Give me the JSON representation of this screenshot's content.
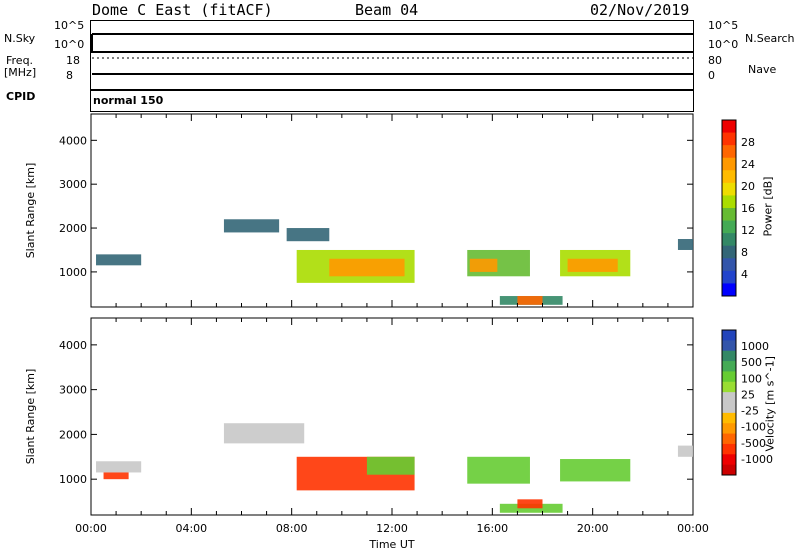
{
  "header": {
    "station": "Dome C East (fitACF)",
    "beam": "Beam 04",
    "date": "02/Nov/2019"
  },
  "top_panels": {
    "nsky_label": "N.Sky",
    "nsky_ticks": [
      "10^5",
      "10^0"
    ],
    "nsearch_label": "N.Search",
    "nsearch_ticks": [
      "10^5",
      "10^0"
    ],
    "freq_label_1": "Freq.",
    "freq_label_2": "[MHz]",
    "freq_ticks": [
      "18",
      "8"
    ],
    "nave_label": "Nave",
    "nave_ticks": [
      "80",
      "0"
    ],
    "cpid_label": "CPID",
    "cpid_value": "normal 150"
  },
  "colorbars": {
    "power": {
      "label": "Power [dB]",
      "ticks": [
        "28",
        "24",
        "20",
        "16",
        "12",
        "8",
        "4"
      ],
      "colors": [
        "#ee0000",
        "#ff3300",
        "#ff6600",
        "#ff9900",
        "#ffbb00",
        "#eedd00",
        "#aadd00",
        "#66bb33",
        "#44aa55",
        "#338866",
        "#336677",
        "#3355aa",
        "#2244cc",
        "#0000ff"
      ]
    },
    "velocity": {
      "label": "Velocity [m s^-1]",
      "ticks": [
        "1000",
        "500",
        "100",
        "25",
        "-25",
        "-100",
        "-500",
        "-1000"
      ],
      "colors": [
        "#2244bb",
        "#3355aa",
        "#338866",
        "#44aa55",
        "#66cc33",
        "#99dd33",
        "#c8c8c8",
        "#c8c8c8",
        "#ffbb00",
        "#ff9900",
        "#ff6600",
        "#ff3300",
        "#ee0000",
        "#cc0000"
      ]
    }
  },
  "chart_data": [
    {
      "type": "heatmap",
      "panel": "power",
      "ylabel": "Slant Range [km]",
      "xlabel": "",
      "ylim": [
        200,
        4600
      ],
      "xlim": [
        0,
        24
      ],
      "yticks": [
        "4000",
        "3000",
        "2000",
        "1000"
      ],
      "ytick_values": [
        4000,
        3000,
        2000,
        1000
      ],
      "patches": [
        {
          "t0": 0.2,
          "t1": 2.0,
          "r0": 1150,
          "r1": 1400,
          "value": 6
        },
        {
          "t0": 5.3,
          "t1": 7.5,
          "r0": 1900,
          "r1": 2200,
          "value": 8
        },
        {
          "t0": 7.8,
          "t1": 9.5,
          "r0": 1700,
          "r1": 2000,
          "value": 8
        },
        {
          "t0": 8.2,
          "t1": 12.9,
          "r0": 750,
          "r1": 1500,
          "value": 16
        },
        {
          "t0": 9.5,
          "t1": 12.5,
          "r0": 900,
          "r1": 1300,
          "value": 22
        },
        {
          "t0": 15.0,
          "t1": 17.5,
          "r0": 900,
          "r1": 1500,
          "value": 14
        },
        {
          "t0": 15.1,
          "t1": 16.2,
          "r0": 1000,
          "r1": 1300,
          "value": 24
        },
        {
          "t0": 16.3,
          "t1": 18.8,
          "r0": 250,
          "r1": 450,
          "value": 10
        },
        {
          "t0": 17.0,
          "t1": 18.0,
          "r0": 250,
          "r1": 450,
          "value": 26
        },
        {
          "t0": 18.7,
          "t1": 21.5,
          "r0": 900,
          "r1": 1500,
          "value": 16
        },
        {
          "t0": 19.0,
          "t1": 21.0,
          "r0": 1000,
          "r1": 1300,
          "value": 24
        },
        {
          "t0": 23.4,
          "t1": 24.0,
          "r0": 1500,
          "r1": 1750,
          "value": 8
        }
      ]
    },
    {
      "type": "heatmap",
      "panel": "velocity",
      "ylabel": "Slant Range [km]",
      "xlabel": "Time UT",
      "ylim": [
        200,
        4600
      ],
      "xlim": [
        0,
        24
      ],
      "yticks": [
        "4000",
        "3000",
        "2000",
        "1000"
      ],
      "ytick_values": [
        4000,
        3000,
        2000,
        1000
      ],
      "xticks": [
        "00:00",
        "04:00",
        "08:00",
        "12:00",
        "16:00",
        "20:00",
        "00:00"
      ],
      "xtick_values": [
        0,
        4,
        8,
        12,
        16,
        20,
        24
      ],
      "patches": [
        {
          "t0": 0.2,
          "t1": 2.0,
          "r0": 1150,
          "r1": 1400,
          "value": 0
        },
        {
          "t0": 0.5,
          "t1": 1.5,
          "r0": 1000,
          "r1": 1150,
          "value": -150
        },
        {
          "t0": 5.3,
          "t1": 8.5,
          "r0": 1800,
          "r1": 2250,
          "value": 0
        },
        {
          "t0": 8.2,
          "t1": 12.9,
          "r0": 750,
          "r1": 1500,
          "value": -200
        },
        {
          "t0": 11.0,
          "t1": 12.9,
          "r0": 1100,
          "r1": 1500,
          "value": 150
        },
        {
          "t0": 15.0,
          "t1": 17.5,
          "r0": 900,
          "r1": 1500,
          "value": 150
        },
        {
          "t0": 16.3,
          "t1": 18.8,
          "r0": 250,
          "r1": 450,
          "value": 150
        },
        {
          "t0": 17.0,
          "t1": 18.0,
          "r0": 350,
          "r1": 550,
          "value": -300
        },
        {
          "t0": 18.7,
          "t1": 21.5,
          "r0": 950,
          "r1": 1450,
          "value": 150
        },
        {
          "t0": 23.4,
          "t1": 24.0,
          "r0": 1500,
          "r1": 1750,
          "value": 0
        }
      ]
    }
  ]
}
